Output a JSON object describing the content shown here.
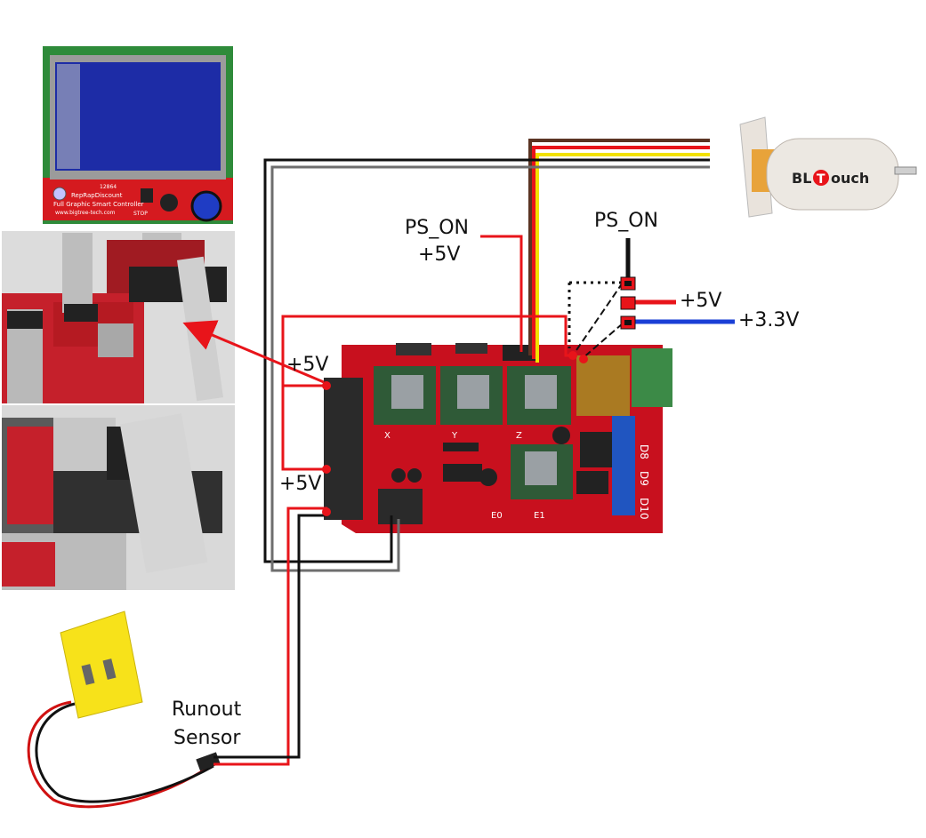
{
  "labels": {
    "ps_on_left": "PS_ON",
    "plus5v_left": "+5V",
    "ps_on_right": "PS_ON",
    "plus5v_right": "+5V",
    "plus3v3_right": "+3.3V",
    "plus5v_upper": "+5V",
    "plus5v_lower": "+5V",
    "runout_line1": "Runout",
    "runout_line2": "Sensor"
  },
  "lcd_text": {
    "model": "12864",
    "brand": "RepRapDiscount",
    "product": "Full Graphic Smart Controller",
    "site": "www.bigtree-tech.com",
    "stop": "STOP"
  },
  "bltouch_text": {
    "brand_a": "BL",
    "brand_b": "T",
    "brand_c": "ouch"
  },
  "board_text": {
    "x": "X",
    "y": "Y",
    "z": "Z",
    "e0": "E0",
    "e1": "E1",
    "d8": "D8",
    "d9": "D9",
    "d10": "D10"
  },
  "colors": {
    "red_wire": "#e8141a",
    "black_wire": "#111111",
    "gray_wire": "#6e6e6e",
    "brown_wire": "#5b3423",
    "yellow_wire": "#f2e200",
    "blue_wire": "#1a3fd6",
    "board_red": "#c8101e",
    "driver_green": "#2f5a37",
    "screen_blue": "#1d2ca6",
    "sensor_yellow": "#f7e21a"
  }
}
